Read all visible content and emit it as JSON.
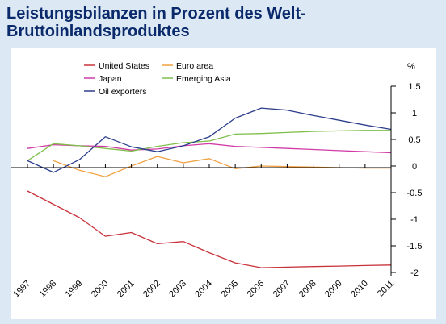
{
  "title_line1": "Leistungsbilanzen in Prozent des Welt-",
  "title_line2": "Bruttoinlandsproduktes",
  "colors": {
    "background": "#dce9f4",
    "title": "#0b2a6b",
    "united_states": "#c8323b",
    "euro_area": "#f0a040",
    "japan": "#d23aa8",
    "emerging_asia": "#7fbf4a",
    "oil_exporters": "#2c3e8c"
  },
  "chart_data": {
    "type": "line",
    "ylabel": "%",
    "ylim": [
      -2,
      1.5
    ],
    "yticks": [
      {
        "v": 1.5,
        "label": "1.5"
      },
      {
        "v": 1,
        "label": "1"
      },
      {
        "v": 0.5,
        "label": "0.5"
      },
      {
        "v": 0,
        "label": "0"
      },
      {
        "v": -0.5,
        "label": "-0.5"
      },
      {
        "v": -1,
        "label": "-1"
      },
      {
        "v": -1.5,
        "label": "-1.5"
      },
      {
        "v": -2,
        "label": "-2"
      }
    ],
    "x": [
      "1997",
      "1998",
      "1999",
      "2000",
      "2001",
      "2002",
      "2003",
      "2004",
      "2005",
      "2006",
      "2007",
      "2008",
      "2009",
      "2010",
      "2011"
    ],
    "legend_placement": "top-left",
    "grid": false,
    "series": [
      {
        "key": "united_states",
        "name": "United States",
        "values": [
          -0.47,
          -0.72,
          -0.97,
          -1.32,
          -1.25,
          -1.46,
          -1.42,
          -1.63,
          -1.82,
          -1.91,
          -1.9,
          -1.89,
          -1.88,
          -1.87,
          -1.86
        ]
      },
      {
        "key": "euro_area",
        "name": "Euro area",
        "values": [
          null,
          0.1,
          -0.08,
          -0.2,
          0.0,
          0.18,
          0.06,
          0.14,
          -0.05,
          0.0,
          -0.01,
          -0.02,
          -0.03,
          -0.04,
          -0.04
        ]
      },
      {
        "key": "japan",
        "name": "Japan",
        "values": [
          0.33,
          0.4,
          0.38,
          0.37,
          0.3,
          0.32,
          0.38,
          0.42,
          0.37,
          0.35,
          0.33,
          0.31,
          0.29,
          0.27,
          0.25
        ]
      },
      {
        "key": "emerging_asia",
        "name": "Emerging Asia",
        "values": [
          0.1,
          0.42,
          0.38,
          0.33,
          0.28,
          0.37,
          0.44,
          0.47,
          0.6,
          0.61,
          0.63,
          0.65,
          0.66,
          0.67,
          0.67
        ]
      },
      {
        "key": "oil_exporters",
        "name": "Oil exporters",
        "values": [
          0.1,
          -0.12,
          0.12,
          0.55,
          0.36,
          0.27,
          0.38,
          0.55,
          0.9,
          1.09,
          1.05,
          0.95,
          0.86,
          0.77,
          0.69
        ]
      }
    ]
  }
}
